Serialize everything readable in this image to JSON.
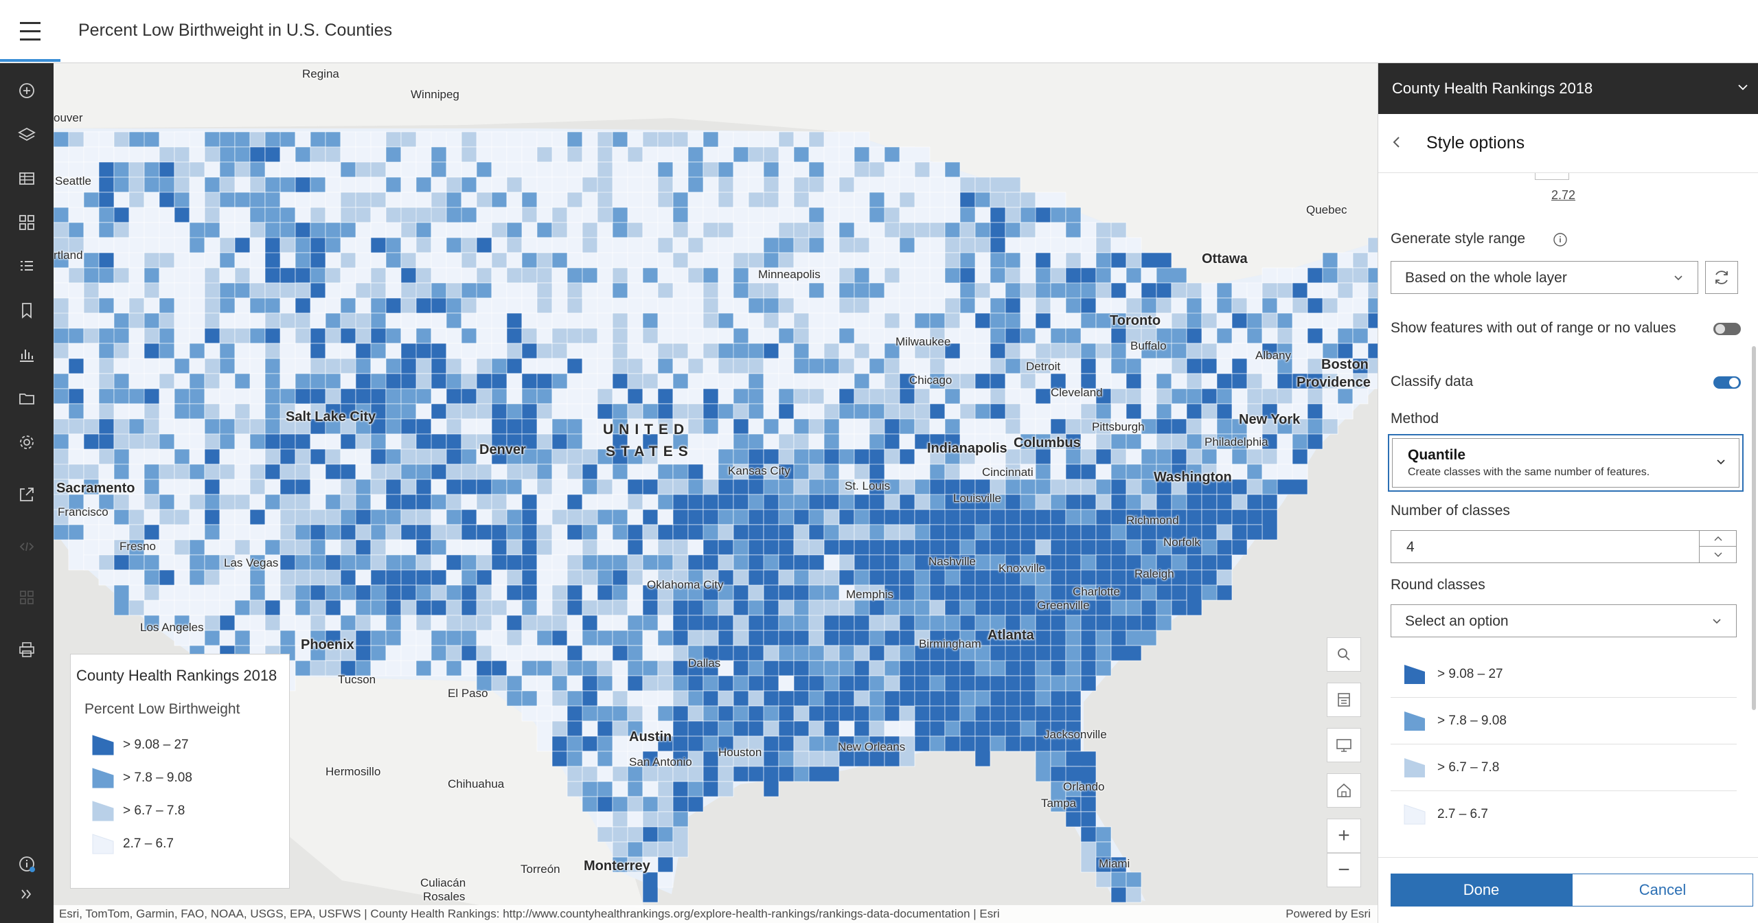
{
  "app": {
    "title": "Percent Low Birthweight in U.S. Counties"
  },
  "toolbar": {
    "items": [
      {
        "icon": "add-icon"
      },
      {
        "icon": "layers-icon"
      },
      {
        "icon": "table-icon"
      },
      {
        "icon": "basemap-icon"
      },
      {
        "icon": "legend-list-icon"
      },
      {
        "icon": "bookmark-icon"
      },
      {
        "icon": "charts-icon"
      },
      {
        "icon": "folder-icon"
      },
      {
        "icon": "settings-icon"
      },
      {
        "icon": "share-icon"
      },
      {
        "icon": "embed-icon"
      },
      {
        "icon": "apps-icon"
      },
      {
        "icon": "print-icon"
      },
      {
        "icon": "info-icon"
      },
      {
        "icon": "expand-icon"
      }
    ]
  },
  "colors": {
    "class1": "#2f6db8",
    "class2": "#6a9fd3",
    "class3": "#b9d0e8",
    "class4": "#eef3fb",
    "accent": "#2b6fb4"
  },
  "map": {
    "cities": [
      {
        "name": "Regina",
        "kind": "small"
      },
      {
        "name": "Winnipeg",
        "kind": "small"
      },
      {
        "name": "ouver",
        "kind": "small"
      },
      {
        "name": "Seattle",
        "kind": "small"
      },
      {
        "name": "rtland",
        "kind": "small"
      },
      {
        "name": "Quebec",
        "kind": "small"
      },
      {
        "name": "Ottawa",
        "kind": "big"
      },
      {
        "name": "Minneapolis",
        "kind": "small"
      },
      {
        "name": "Toronto",
        "kind": "big"
      },
      {
        "name": "Buffalo",
        "kind": "small"
      },
      {
        "name": "Milwaukee",
        "kind": "small"
      },
      {
        "name": "Albany",
        "kind": "small"
      },
      {
        "name": "Boston",
        "kind": "big"
      },
      {
        "name": "Providence",
        "kind": "big"
      },
      {
        "name": "Detroit",
        "kind": "small"
      },
      {
        "name": "Chicago",
        "kind": "small"
      },
      {
        "name": "Cleveland",
        "kind": "small"
      },
      {
        "name": "Salt Lake City",
        "kind": "big"
      },
      {
        "name": "Pittsburgh",
        "kind": "small"
      },
      {
        "name": "New York",
        "kind": "big"
      },
      {
        "name": "Philadelphia",
        "kind": "small"
      },
      {
        "name": "Indianapolis",
        "kind": "big"
      },
      {
        "name": "Columbus",
        "kind": "big"
      },
      {
        "name": "Denver",
        "kind": "big"
      },
      {
        "name": "Sacramento",
        "kind": "big"
      },
      {
        "name": "Kansas City",
        "kind": "small"
      },
      {
        "name": "Cincinnati",
        "kind": "small"
      },
      {
        "name": "Washington",
        "kind": "big"
      },
      {
        "name": "Francisco",
        "kind": "small"
      },
      {
        "name": "St. Louis",
        "kind": "small"
      },
      {
        "name": "Louisville",
        "kind": "small"
      },
      {
        "name": "Richmond",
        "kind": "small"
      },
      {
        "name": "Fresno",
        "kind": "small"
      },
      {
        "name": "Norfolk",
        "kind": "small"
      },
      {
        "name": "Las Vegas",
        "kind": "small"
      },
      {
        "name": "Nashville",
        "kind": "small"
      },
      {
        "name": "Knoxville",
        "kind": "small"
      },
      {
        "name": "Raleigh",
        "kind": "small"
      },
      {
        "name": "Oklahoma City",
        "kind": "small"
      },
      {
        "name": "Charlotte",
        "kind": "small"
      },
      {
        "name": "Memphis",
        "kind": "small"
      },
      {
        "name": "Greenville",
        "kind": "small"
      },
      {
        "name": "Los Angeles",
        "kind": "small"
      },
      {
        "name": "Birmingham",
        "kind": "small"
      },
      {
        "name": "Atlanta",
        "kind": "big"
      },
      {
        "name": "Phoenix",
        "kind": "big"
      },
      {
        "name": "Dallas",
        "kind": "small"
      },
      {
        "name": "Tucson",
        "kind": "small"
      },
      {
        "name": "El Paso",
        "kind": "small"
      },
      {
        "name": "Austin",
        "kind": "big"
      },
      {
        "name": "Jacksonville",
        "kind": "small"
      },
      {
        "name": "Houston",
        "kind": "small"
      },
      {
        "name": "New Orleans",
        "kind": "small"
      },
      {
        "name": "San Antonio",
        "kind": "small"
      },
      {
        "name": "Hermosillo",
        "kind": "small"
      },
      {
        "name": "Chihuahua",
        "kind": "small"
      },
      {
        "name": "Orlando",
        "kind": "small"
      },
      {
        "name": "Tampa",
        "kind": "small"
      },
      {
        "name": "Miami",
        "kind": "small"
      },
      {
        "name": "Culiacán",
        "kind": "small"
      },
      {
        "name": "Rosales",
        "kind": "small"
      },
      {
        "name": "Torreón",
        "kind": "small"
      },
      {
        "name": "Monterrey",
        "kind": "big"
      }
    ],
    "country_line1": "UNITED",
    "country_line2": "STATES",
    "attribution": "Esri, TomTom, Garmin, FAO, NOAA, USGS, EPA, USFWS | County Health Rankings: http://www.countyhealthrankings.org/explore-health-rankings/rankings-data-documentation | Esri",
    "powered_by": "Powered by Esri"
  },
  "legend": {
    "title": "County Health Rankings 2018",
    "field": "Percent Low Birthweight",
    "classes": [
      {
        "label": "> 9.08 – 27"
      },
      {
        "label": "> 7.8 – 9.08"
      },
      {
        "label": "> 6.7 – 7.8"
      },
      {
        "label": "2.7 – 6.7"
      }
    ]
  },
  "map_widgets": [
    {
      "icon": "search-icon"
    },
    {
      "icon": "print-map-icon"
    },
    {
      "icon": "screen-icon"
    },
    {
      "icon": "home-icon"
    },
    {
      "icon": "zoom-in-icon",
      "glyph": "+"
    },
    {
      "icon": "zoom-out-icon",
      "glyph": "−"
    }
  ],
  "panel": {
    "layer_title": "County Health Rankings 2018",
    "section_title": "Style options",
    "min_value": "2.72",
    "generate_range_label": "Generate style range",
    "generate_range_value": "Based on the whole layer",
    "show_out_of_range_label": "Show features with out of range or no values",
    "show_out_of_range_on": false,
    "classify_label": "Classify data",
    "classify_on": true,
    "method_label": "Method",
    "method_value": "Quantile",
    "method_desc": "Create classes with the same number of features.",
    "num_classes_label": "Number of classes",
    "num_classes_value": "4",
    "round_label": "Round classes",
    "round_placeholder": "Select an option",
    "classes": [
      {
        "label": "> 9.08 – 27"
      },
      {
        "label": "> 7.8 – 9.08"
      },
      {
        "label": "> 6.7 – 7.8"
      },
      {
        "label": "2.7 – 6.7"
      }
    ],
    "done_label": "Done",
    "cancel_label": "Cancel"
  }
}
